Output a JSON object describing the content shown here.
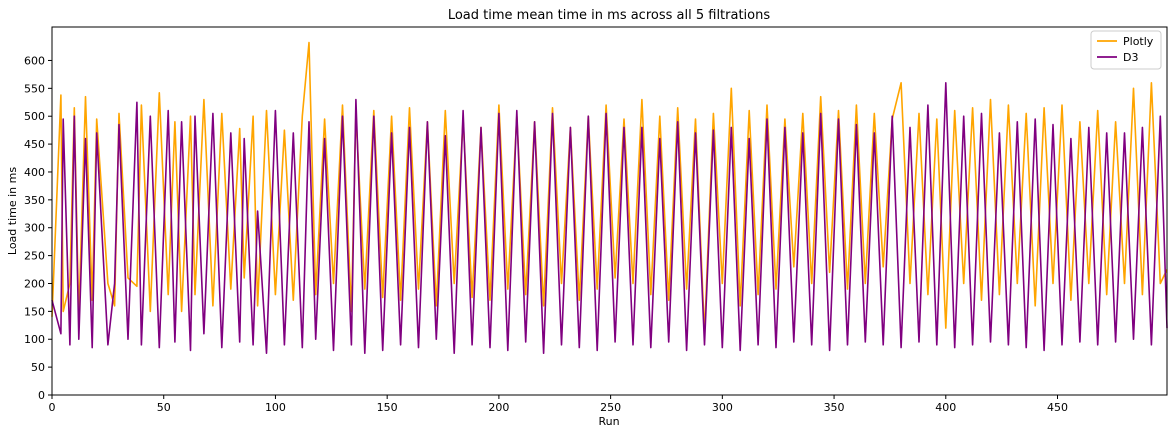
{
  "chart_data": {
    "type": "line",
    "title": "Load time mean time in ms across all 5 filtrations",
    "xlabel": "Run",
    "ylabel": "Load time in ms",
    "xlim": [
      0,
      499
    ],
    "ylim": [
      0,
      660
    ],
    "x_ticks": [
      "0",
      "50",
      "100",
      "150",
      "200",
      "250",
      "300",
      "350",
      "400",
      "450"
    ],
    "y_ticks": [
      "0",
      "50",
      "100",
      "150",
      "200",
      "250",
      "300",
      "350",
      "400",
      "450",
      "500",
      "550",
      "600"
    ],
    "legend_position": "upper right",
    "grid": false,
    "x": [
      0,
      4,
      5,
      8,
      10,
      12,
      15,
      18,
      20,
      25,
      28,
      30,
      34,
      38,
      40,
      44,
      48,
      52,
      55,
      58,
      62,
      64,
      68,
      72,
      76,
      80,
      84,
      86,
      90,
      92,
      96,
      100,
      104,
      108,
      112,
      115,
      118,
      122,
      126,
      130,
      134,
      136,
      140,
      144,
      148,
      152,
      156,
      160,
      164,
      168,
      172,
      176,
      180,
      184,
      188,
      192,
      196,
      200,
      204,
      208,
      212,
      216,
      220,
      224,
      228,
      232,
      236,
      240,
      244,
      248,
      252,
      256,
      260,
      264,
      268,
      272,
      276,
      280,
      284,
      288,
      292,
      296,
      300,
      304,
      308,
      312,
      316,
      320,
      324,
      328,
      332,
      336,
      340,
      344,
      348,
      352,
      356,
      360,
      364,
      368,
      372,
      376,
      380,
      384,
      388,
      392,
      396,
      400,
      404,
      408,
      412,
      416,
      420,
      424,
      428,
      432,
      436,
      440,
      444,
      448,
      452,
      456,
      460,
      464,
      468,
      472,
      476,
      480,
      484,
      488,
      492,
      496,
      499
    ],
    "series": [
      {
        "name": "Plotly",
        "color": "#FFA500",
        "values": [
          140,
          538,
          150,
          200,
          515,
          140,
          535,
          170,
          495,
          200,
          160,
          505,
          210,
          195,
          520,
          150,
          542,
          180,
          490,
          150,
          500,
          180,
          530,
          160,
          505,
          190,
          478,
          210,
          500,
          160,
          510,
          180,
          475,
          170,
          500,
          632,
          180,
          495,
          200,
          520,
          150,
          505,
          190,
          510,
          175,
          500,
          170,
          515,
          190,
          490,
          160,
          510,
          200,
          495,
          175,
          480,
          170,
          520,
          190,
          500,
          180,
          490,
          160,
          515,
          200,
          480,
          170,
          500,
          190,
          520,
          210,
          495,
          200,
          530,
          180,
          500,
          170,
          515,
          190,
          495,
          110,
          505,
          200,
          550,
          160,
          510,
          180,
          520,
          190,
          495,
          230,
          505,
          200,
          535,
          220,
          510,
          190,
          520,
          200,
          505,
          230,
          495,
          560,
          200,
          505,
          180,
          495,
          120,
          510,
          200,
          515,
          170,
          530,
          180,
          520,
          200,
          505,
          160,
          515,
          200,
          520,
          170,
          490,
          200,
          510,
          180,
          490,
          200,
          550,
          180,
          560,
          200,
          225
        ]
      },
      {
        "name": "D3",
        "color": "#800080",
        "values": [
          170,
          110,
          495,
          90,
          500,
          100,
          460,
          85,
          470,
          90,
          200,
          485,
          100,
          525,
          90,
          500,
          85,
          510,
          95,
          490,
          80,
          500,
          110,
          505,
          85,
          470,
          95,
          460,
          90,
          330,
          75,
          510,
          90,
          470,
          85,
          490,
          100,
          460,
          80,
          500,
          90,
          530,
          75,
          500,
          80,
          470,
          90,
          480,
          85,
          490,
          100,
          465,
          75,
          510,
          90,
          480,
          85,
          505,
          80,
          510,
          95,
          490,
          75,
          505,
          90,
          480,
          85,
          500,
          80,
          505,
          95,
          480,
          90,
          480,
          85,
          460,
          95,
          490,
          80,
          470,
          90,
          475,
          85,
          480,
          80,
          460,
          90,
          495,
          85,
          480,
          95,
          470,
          90,
          505,
          80,
          495,
          90,
          485,
          95,
          470,
          90,
          500,
          85,
          480,
          95,
          520,
          90,
          560,
          85,
          500,
          90,
          505,
          95,
          470,
          90,
          490,
          85,
          495,
          80,
          485,
          90,
          460,
          95,
          480,
          90,
          470,
          95,
          470,
          100,
          480,
          90,
          500,
          120
        ]
      }
    ]
  }
}
